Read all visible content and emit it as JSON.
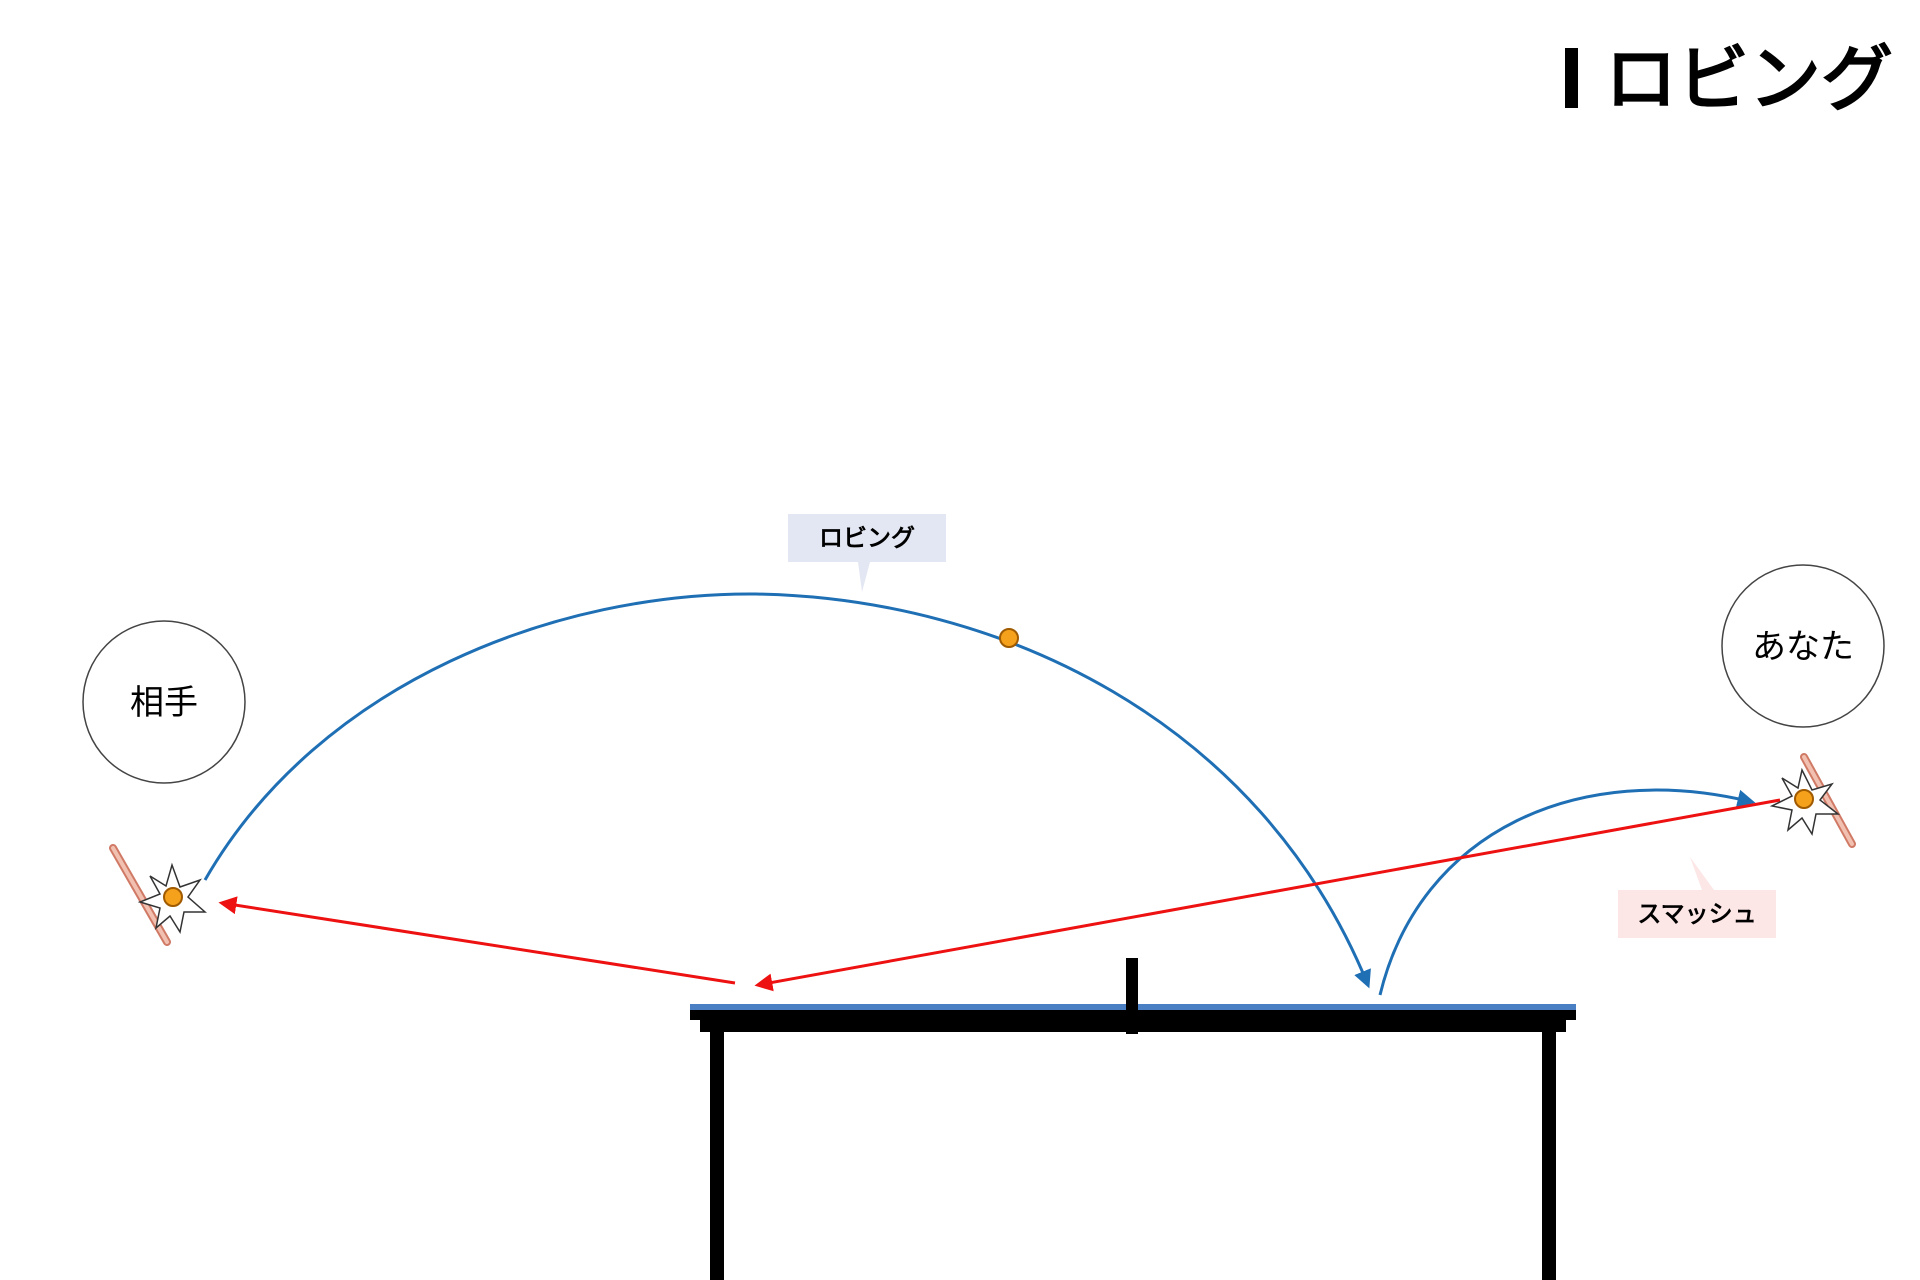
{
  "title": "ロビング",
  "players": {
    "opponent": "相手",
    "you": "あなた"
  },
  "callouts": {
    "lob": "ロビング",
    "smash": "スマッシュ"
  },
  "colors": {
    "lob_path": "#1f6fb5",
    "smash_path": "#ee1111",
    "ball_fill": "#f5a11c",
    "ball_stroke": "#a05a00",
    "lob_callout_bg": "#e3e7f3",
    "smash_callout_bg": "#fde6e6",
    "table_top": "#4a7fc4",
    "table_frame": "#000000",
    "paddle": "#e8a08a"
  }
}
